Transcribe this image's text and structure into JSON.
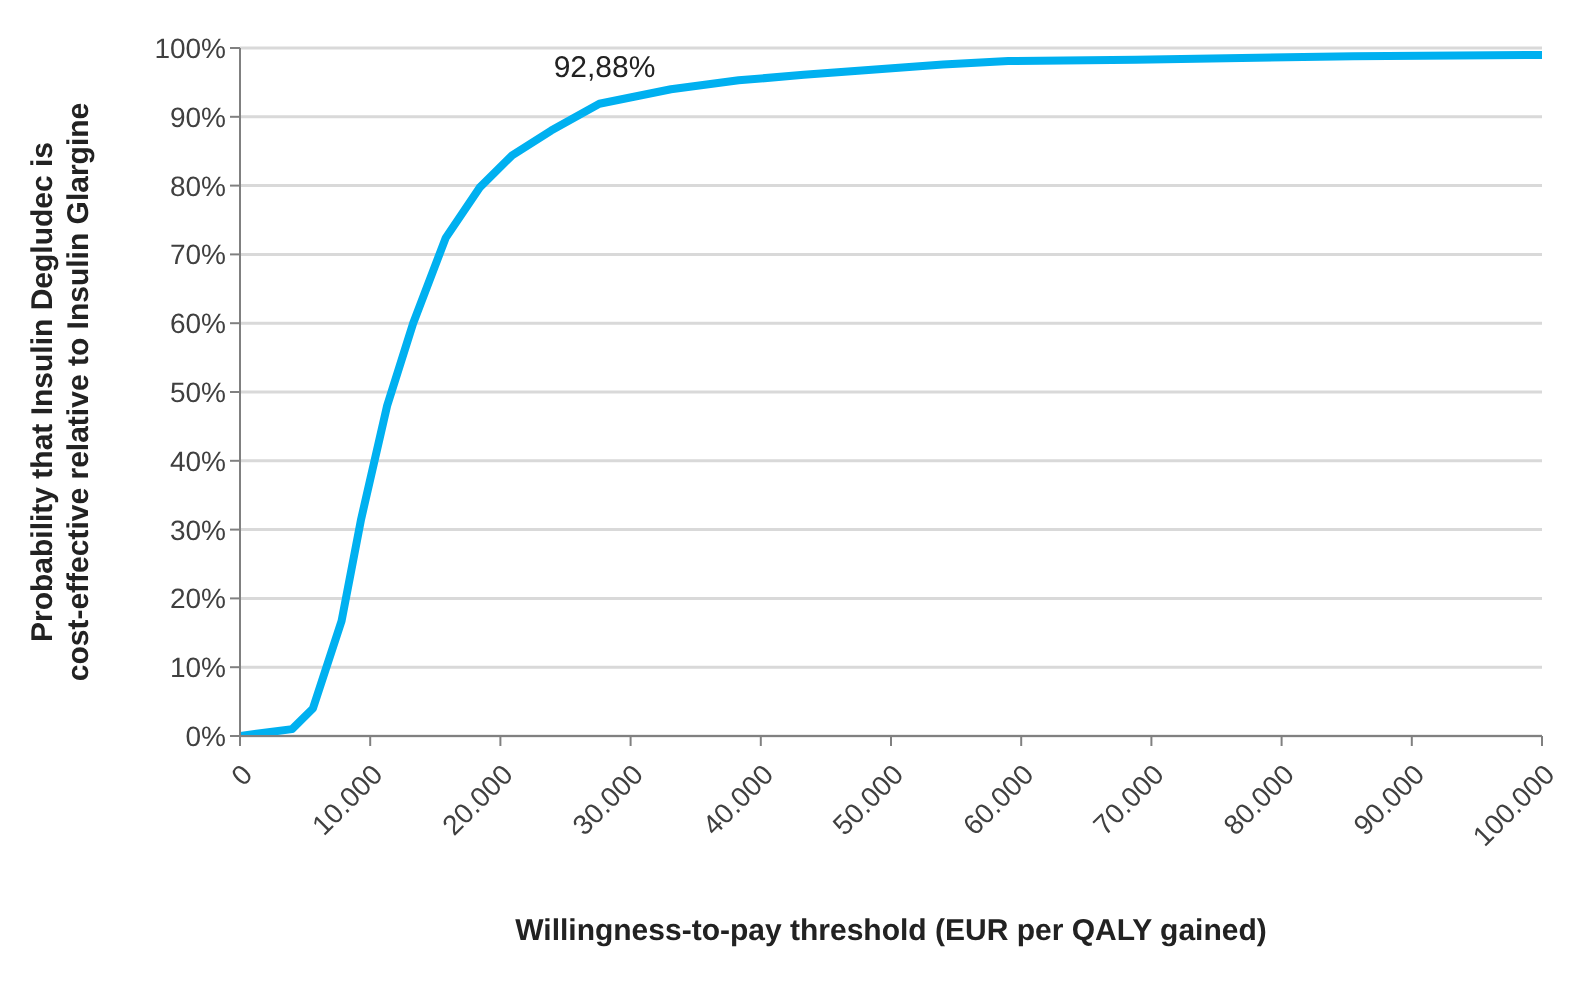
{
  "chart_data": {
    "type": "line",
    "xlabel": "Willingness-to-pay threshold (EUR per QALY gained)",
    "ylabel": "Probability that Insulin Degludec is cost-effective relative to Insulin Glargine",
    "x": [
      0,
      4000,
      5600,
      7800,
      9300,
      11300,
      13300,
      15800,
      18400,
      20900,
      23900,
      27600,
      33100,
      38300,
      43300,
      54000,
      59000,
      68800,
      85500,
      100000
    ],
    "series": [
      {
        "color": "#00b0f0",
        "values": [
          0,
          1,
          4,
          16.7,
          31.5,
          48,
          60,
          72.4,
          79.7,
          84.4,
          88,
          91.9,
          94,
          95.3,
          96.1,
          97.6,
          98.1,
          98.3,
          98.8,
          99
        ]
      }
    ],
    "annotations": [
      {
        "text": "92,88%",
        "x": 28000,
        "y": 92.88
      }
    ],
    "xlim": [
      0,
      100000
    ],
    "xticks": [
      {
        "value": 0,
        "label": "0"
      },
      {
        "value": 10000,
        "label": "10.000"
      },
      {
        "value": 20000,
        "label": "20.000"
      },
      {
        "value": 30000,
        "label": "30.000"
      },
      {
        "value": 40000,
        "label": "40.000"
      },
      {
        "value": 50000,
        "label": "50.000"
      },
      {
        "value": 60000,
        "label": "60.000"
      },
      {
        "value": 70000,
        "label": "70.000"
      },
      {
        "value": 80000,
        "label": "80.000"
      },
      {
        "value": 90000,
        "label": "90.000"
      },
      {
        "value": 100000,
        "label": "100.000"
      }
    ],
    "ylim": [
      0,
      100
    ],
    "yticks": [
      {
        "value": 0,
        "label": "0%"
      },
      {
        "value": 10,
        "label": "10%"
      },
      {
        "value": 20,
        "label": "20%"
      },
      {
        "value": 30,
        "label": "30%"
      },
      {
        "value": 40,
        "label": "40%"
      },
      {
        "value": 50,
        "label": "50%"
      },
      {
        "value": 60,
        "label": "60%"
      },
      {
        "value": 70,
        "label": "70%"
      },
      {
        "value": 80,
        "label": "80%"
      },
      {
        "value": 90,
        "label": "90%"
      },
      {
        "value": 100,
        "label": "100%"
      }
    ],
    "grid": "y",
    "legend": false,
    "marker": "none",
    "line_style": "solid"
  }
}
